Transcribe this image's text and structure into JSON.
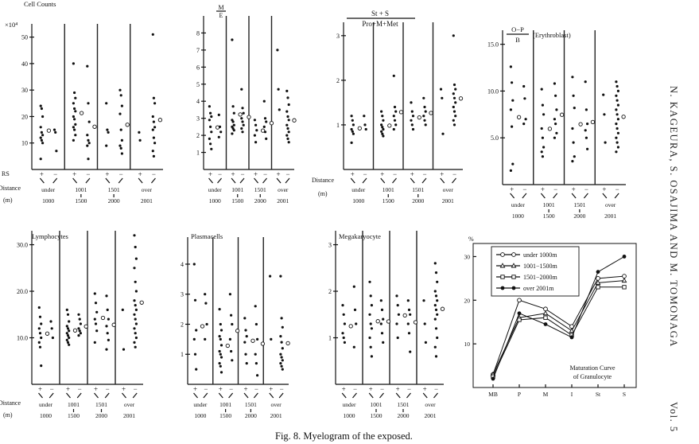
{
  "figure": {
    "caption": "Fig. 8.   Myelogram of the exposed.",
    "side_text": "N. KAGEURA, S. OSAJIMA AND M. TOMONAGA",
    "volume": "Vol. 5"
  },
  "groups": {
    "rs_label": "RS",
    "distance_label": "Distance",
    "unit_label": "(m)",
    "rs_signs": [
      "+",
      "−",
      "+",
      "−",
      "+",
      "−",
      "+",
      "−"
    ],
    "items": [
      {
        "top": "under",
        "bottom": "1000"
      },
      {
        "top": "1001",
        "bottom": "1500"
      },
      {
        "top": "1501",
        "bottom": "2000"
      },
      {
        "top": "over",
        "bottom": "2001"
      }
    ]
  },
  "chart_data": [
    {
      "type": "scatter",
      "title": "Cell Counts",
      "ylabel": "×10⁴",
      "ylim": [
        0,
        55
      ],
      "yticks": [
        10,
        20,
        30,
        40,
        50
      ],
      "series": [
        {
          "group": "under 1000",
          "rs": "+",
          "values": [
            24,
            23,
            20,
            16,
            14,
            13,
            12,
            11,
            10,
            4
          ]
        },
        {
          "group": "under 1000",
          "rs": "-",
          "values": [
            15,
            14,
            7
          ]
        },
        {
          "group": "1001-1500",
          "rs": "+",
          "values": [
            40,
            29,
            27,
            25,
            23,
            22,
            20,
            19,
            17,
            16,
            15,
            13,
            11
          ]
        },
        {
          "group": "1001-1500",
          "rs": "-",
          "values": [
            39,
            25,
            18,
            13,
            11,
            10,
            9,
            4
          ]
        },
        {
          "group": "1501-2000",
          "rs": "+",
          "values": [
            25,
            15,
            14,
            9
          ]
        },
        {
          "group": "1501-2000",
          "rs": "-",
          "values": [
            30,
            28,
            24,
            21,
            15,
            11,
            9,
            8,
            6
          ]
        },
        {
          "group": "over 2001",
          "rs": "+",
          "values": [
            14,
            11
          ]
        },
        {
          "group": "over 2001",
          "rs": "-",
          "values": [
            51,
            27,
            25,
            20,
            18,
            16,
            15,
            12,
            10,
            7,
            5
          ]
        }
      ]
    },
    {
      "type": "scatter",
      "title": "M/E",
      "ylim": [
        0,
        9
      ],
      "yticks": [
        1,
        2,
        3,
        4,
        5,
        6,
        7,
        8
      ],
      "series": [
        {
          "group": "under 1000",
          "rs": "+",
          "values": [
            3.7,
            3.3,
            3.1,
            2.9,
            2.5,
            2.2,
            1.8,
            1.5,
            1.2
          ]
        },
        {
          "group": "under 1000",
          "rs": "-",
          "values": [
            3.2,
            2.5,
            2.2,
            1.9
          ]
        },
        {
          "group": "1001-1500",
          "rs": "+",
          "values": [
            7.6,
            3.7,
            3.3,
            2.9,
            2.8,
            2.6,
            2.5,
            2.4,
            2.3,
            2.1
          ]
        },
        {
          "group": "1001-1500",
          "rs": "-",
          "values": [
            4.7,
            3.6,
            3.3,
            3.0,
            2.8,
            2.6,
            2.4,
            2.2
          ]
        },
        {
          "group": "1501-2000",
          "rs": "+",
          "values": [
            2.9,
            2.6,
            2.3,
            2.0,
            1.6
          ]
        },
        {
          "group": "1501-2000",
          "rs": "-",
          "values": [
            4.0,
            3.0,
            2.8,
            2.5,
            2.2,
            1.8
          ]
        },
        {
          "group": "over 2001",
          "rs": "+",
          "values": [
            7.0,
            4.7,
            3.5
          ]
        },
        {
          "group": "over 2001",
          "rs": "-",
          "values": [
            4.6,
            4.2,
            3.8,
            3.4,
            3.1,
            2.9,
            2.6,
            2.4,
            2.2,
            2.0,
            1.8,
            1.6
          ]
        }
      ]
    },
    {
      "type": "scatter",
      "title": "St + S / Pro+M+Met",
      "ylim": [
        0,
        3.3
      ],
      "yticks": [
        1.0,
        2.0,
        3.0
      ],
      "series": [
        {
          "group": "under 1000",
          "rs": "+",
          "values": [
            1.2,
            1.1,
            1.0,
            0.9,
            0.85,
            0.8,
            0.6
          ]
        },
        {
          "group": "under 1000",
          "rs": "-",
          "values": [
            1.2,
            1.0,
            0.9
          ]
        },
        {
          "group": "1001-1500",
          "rs": "+",
          "values": [
            1.3,
            1.2,
            1.1,
            1.0,
            0.95,
            0.9,
            0.85,
            0.8,
            0.75
          ]
        },
        {
          "group": "1001-1500",
          "rs": "-",
          "values": [
            2.1,
            1.4,
            1.3,
            1.2,
            1.1,
            1.0,
            0.9
          ]
        },
        {
          "group": "1501-2000",
          "rs": "+",
          "values": [
            1.5,
            1.3,
            1.2,
            1.1,
            1.0,
            0.9
          ]
        },
        {
          "group": "1501-2000",
          "rs": "-",
          "values": [
            1.6,
            1.4,
            1.3,
            1.2,
            1.1,
            1.0
          ]
        },
        {
          "group": "over 2001",
          "rs": "+",
          "values": [
            1.8,
            1.6,
            0.8
          ]
        },
        {
          "group": "over 2001",
          "rs": "-",
          "values": [
            3.0,
            1.9,
            1.8,
            1.7,
            1.6,
            1.5,
            1.4,
            1.3,
            1.2,
            1.1,
            1.0
          ]
        }
      ]
    },
    {
      "type": "scatter",
      "title": "O−P / B",
      "subtitle": "(Erythroblast)",
      "ylim": [
        0,
        16.5
      ],
      "yticks": [
        5.0,
        10.0,
        15.0
      ],
      "series": [
        {
          "group": "under 1000",
          "rs": "+",
          "values": [
            12.6,
            10.9,
            9.0,
            8.0,
            6.2,
            2.2,
            1.5
          ]
        },
        {
          "group": "under 1000",
          "rs": "-",
          "values": [
            10.5,
            9.2,
            7.0,
            6.5
          ]
        },
        {
          "group": "1001-1500",
          "rs": "+",
          "values": [
            10.2,
            8.5,
            7.5,
            6.0,
            5.0,
            4.0,
            3.5,
            3.0
          ]
        },
        {
          "group": "1001-1500",
          "rs": "-",
          "values": [
            10.8,
            9.5,
            8.0,
            7.0,
            6.5,
            5.5,
            5.0
          ]
        },
        {
          "group": "1501-2000",
          "rs": "+",
          "values": [
            11.5,
            9.5,
            8.2,
            6.0,
            4.5,
            3.0,
            2.5
          ]
        },
        {
          "group": "1501-2000",
          "rs": "-",
          "values": [
            11.0,
            8.0,
            6.5,
            5.8,
            5.0,
            3.8
          ]
        },
        {
          "group": "over 2001",
          "rs": "+",
          "values": [
            9.6,
            7.5,
            4.5
          ]
        },
        {
          "group": "over 2001",
          "rs": "-",
          "values": [
            11.0,
            10.5,
            10.0,
            9.5,
            9.0,
            8.5,
            8.0,
            7.5,
            7.0,
            6.5,
            6.0,
            5.5,
            5.0,
            4.5,
            4.0,
            3.5
          ]
        }
      ]
    },
    {
      "type": "scatter",
      "title": "Lymphocytes",
      "ylim": [
        0,
        33
      ],
      "yticks": [
        10.0,
        20.0,
        30.0
      ],
      "series": [
        {
          "group": "under 1000",
          "rs": "+",
          "values": [
            16.5,
            14.5,
            13.0,
            12.0,
            11.0,
            10.0,
            9.0,
            8.0,
            4.0
          ]
        },
        {
          "group": "under 1000",
          "rs": "-",
          "values": [
            13.5,
            12.0,
            10.0
          ]
        },
        {
          "group": "1001-1500",
          "rs": "+",
          "values": [
            16.0,
            15.0,
            13.5,
            12.5,
            12.0,
            11.5,
            11.0,
            10.5,
            10.0,
            9.5,
            9.0,
            8.5
          ]
        },
        {
          "group": "1001-1500",
          "rs": "-",
          "values": [
            15.0,
            14.0,
            13.0,
            12.0,
            11.5,
            11.0,
            10.5
          ]
        },
        {
          "group": "1501-2000",
          "rs": "+",
          "values": [
            19.5,
            17.5,
            15.5,
            14.0,
            13.0,
            11.5,
            9.0
          ]
        },
        {
          "group": "1501-2000",
          "rs": "-",
          "values": [
            19.0,
            16.0,
            14.0,
            12.5,
            11.0,
            9.5,
            7.5
          ]
        },
        {
          "group": "over 2001",
          "rs": "+",
          "values": [
            16.0,
            7.5
          ]
        },
        {
          "group": "over 2001",
          "rs": "-",
          "values": [
            32.0,
            29.5,
            27.0,
            25.0,
            22.0,
            20.0,
            18.0,
            17.0,
            16.0,
            15.0,
            14.0,
            13.0,
            12.0,
            11.0,
            10.0,
            9.0,
            8.0
          ]
        }
      ]
    },
    {
      "type": "scatter",
      "title": "Plasmacells",
      "ylim": [
        0,
        4.9
      ],
      "yticks": [
        1.0,
        2.0,
        3.0,
        4.0
      ],
      "series": [
        {
          "group": "under 1000",
          "rs": "+",
          "values": [
            4.0,
            2.8,
            1.8,
            1.5,
            1.0,
            0.5
          ]
        },
        {
          "group": "under 1000",
          "rs": "-",
          "values": [
            3.0,
            2.7,
            2.0,
            1.5
          ]
        },
        {
          "group": "1001-1500",
          "rs": "+",
          "values": [
            2.5,
            2.0,
            1.8,
            1.6,
            1.5,
            1.3,
            1.1,
            1.0,
            0.9,
            0.7,
            0.6,
            0.4
          ]
        },
        {
          "group": "1001-1500",
          "rs": "-",
          "values": [
            3.0,
            2.3,
            2.0,
            1.5,
            1.1,
            0.8
          ]
        },
        {
          "group": "1501-2000",
          "rs": "+",
          "values": [
            2.2,
            1.8,
            1.6,
            1.4,
            1.0,
            0.7
          ]
        },
        {
          "group": "1501-2000",
          "rs": "-",
          "values": [
            2.6,
            2.0,
            1.5,
            1.0,
            0.7,
            0.3
          ]
        },
        {
          "group": "over 2001",
          "rs": "+",
          "values": [
            3.6,
            1.5
          ]
        },
        {
          "group": "over 2001",
          "rs": "-",
          "values": [
            3.6,
            2.2,
            1.9,
            1.6,
            1.4,
            1.2,
            1.0,
            0.9,
            0.8,
            0.7,
            0.6,
            0.5
          ]
        }
      ]
    },
    {
      "type": "scatter",
      "title": "Megakaryocyte",
      "ylim": [
        0,
        3.3
      ],
      "yticks": [
        1.0,
        2.0,
        3.0
      ],
      "series": [
        {
          "group": "under 1000",
          "rs": "+",
          "values": [
            1.7,
            1.5,
            1.3,
            1.1,
            1.0,
            0.9
          ]
        },
        {
          "group": "under 1000",
          "rs": "-",
          "values": [
            2.1,
            1.6,
            1.3,
            0.8
          ]
        },
        {
          "group": "1001-1500",
          "rs": "+",
          "values": [
            2.2,
            1.9,
            1.7,
            1.5,
            1.3,
            1.2,
            1.0,
            0.8,
            0.6
          ]
        },
        {
          "group": "1001-1500",
          "rs": "-",
          "values": [
            1.8,
            1.6,
            1.4,
            1.3,
            1.1,
            0.9
          ]
        },
        {
          "group": "1501-2000",
          "rs": "+",
          "values": [
            1.9,
            1.7,
            1.5,
            1.3,
            1.0
          ]
        },
        {
          "group": "1501-2000",
          "rs": "-",
          "values": [
            1.8,
            1.6,
            1.5,
            1.3,
            1.1,
            0.7
          ]
        },
        {
          "group": "over 2001",
          "rs": "+",
          "values": [
            1.8,
            1.3,
            0.9
          ]
        },
        {
          "group": "over 2001",
          "rs": "-",
          "values": [
            2.6,
            2.4,
            2.2,
            2.0,
            1.9,
            1.8,
            1.7,
            1.6,
            1.5,
            1.4,
            1.2,
            1.0,
            0.8,
            0.6
          ]
        }
      ]
    },
    {
      "type": "line",
      "title": "Maturation Curve of Granulocyte",
      "ylabel": "%",
      "categories": [
        "MB",
        "P",
        "M",
        "I",
        "St",
        "S"
      ],
      "ylim": [
        0,
        33
      ],
      "yticks": [
        10,
        20,
        30
      ],
      "series": [
        {
          "name": "under 1000m",
          "marker": "open-circle",
          "values": [
            3.0,
            20.0,
            18.0,
            14.0,
            25.0,
            25.5
          ]
        },
        {
          "name": "1001−1500m",
          "marker": "triangle",
          "values": [
            3.0,
            16.0,
            17.0,
            13.0,
            24.0,
            24.5
          ]
        },
        {
          "name": "1501−2000m",
          "marker": "open-square",
          "values": [
            2.5,
            15.5,
            16.0,
            12.0,
            23.0,
            23.0
          ]
        },
        {
          "name": "over 2001m",
          "marker": "filled-circle",
          "values": [
            2.0,
            17.0,
            14.5,
            11.5,
            26.5,
            30.0
          ]
        }
      ]
    }
  ]
}
